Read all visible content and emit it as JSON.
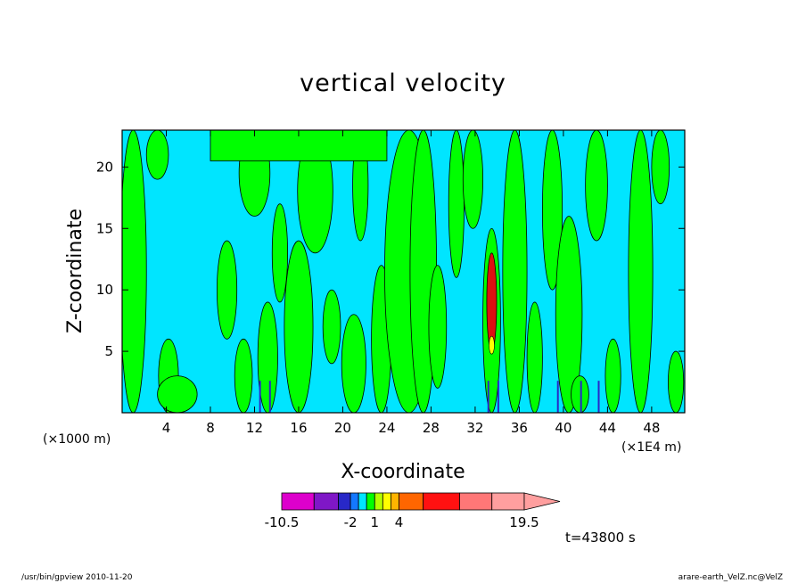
{
  "chart_data": {
    "type": "heatmap",
    "title": "vertical velocity",
    "xlabel": "X-coordinate",
    "ylabel": "Z-coordinate",
    "x_unit_left": "(×1000 m)",
    "x_unit_right": "(×1E4 m)",
    "xlim": [
      0,
      51
    ],
    "ylim": [
      0,
      23
    ],
    "x_ticks": [
      4,
      8,
      12,
      16,
      20,
      24,
      28,
      32,
      36,
      40,
      44,
      48
    ],
    "y_ticks": [
      5,
      10,
      15,
      20
    ],
    "time_label": "t=43800 s",
    "colorbar": {
      "levels": [
        -10.5,
        -6.5,
        -3.5,
        -2,
        -1,
        0,
        1,
        2,
        3,
        4,
        7,
        11.5,
        15.5,
        19.5
      ],
      "colors": [
        "#dd00cc",
        "#7f17c7",
        "#2828c8",
        "#1478ff",
        "#00e5ff",
        "#00ff00",
        "#b4ff00",
        "#ffff00",
        "#ffb400",
        "#ff6600",
        "#ff1111",
        "#ff7777",
        "#ff9f9f"
      ],
      "tick_labels": [
        "-10.5",
        "-2",
        "1",
        "4",
        "19.5"
      ],
      "arrow_color": "#ff9f9f"
    },
    "background_color": "#00e5ff",
    "updraft_color": "#00ff00",
    "strong_core": {
      "x": 33.5,
      "z_range": [
        5,
        13
      ],
      "color": "#dd1111"
    }
  },
  "footer": {
    "left": "/usr/bin/gpview  2010-11-20",
    "right": "arare-earth_VelZ.nc@VelZ"
  }
}
